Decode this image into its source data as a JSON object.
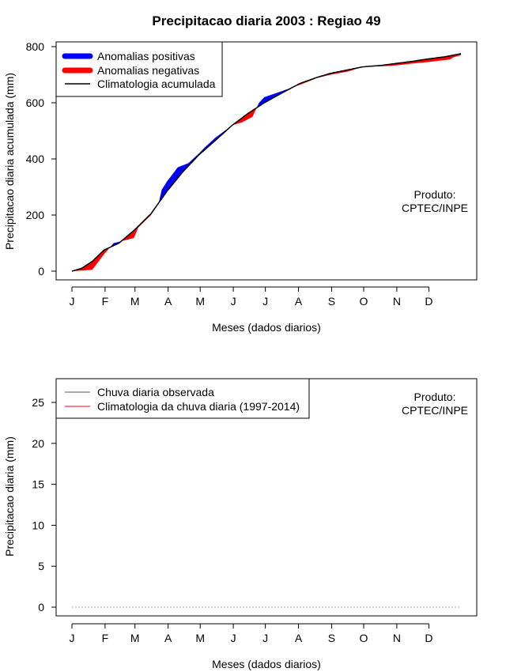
{
  "title": "Precipitacao diaria 2003 : Regiao 49",
  "colors": {
    "positive": "#0000ff",
    "negative": "#ff0000",
    "climatology": "#000000",
    "observed_bars": "#555555",
    "clim_daily_line": "#ff0000"
  },
  "chart_data": [
    {
      "id": "top",
      "type": "area",
      "title": "Precipitacao diaria 2003 : Regiao 49",
      "xlabel": "Meses (dados diarios)",
      "ylabel": "Precipitacao diaria acumulada (mm)",
      "xlim": [
        1,
        365
      ],
      "ylim": [
        0,
        800
      ],
      "yticks": [
        0,
        200,
        400,
        600,
        800
      ],
      "month_ticks": [
        "J",
        "F",
        "M",
        "A",
        "M",
        "J",
        "J",
        "A",
        "S",
        "O",
        "N",
        "D"
      ],
      "legend": {
        "position": "top-left",
        "items": [
          {
            "label": "Anomalias positivas",
            "color": "#0000ff",
            "kind": "thick"
          },
          {
            "label": "Anomalias negativas",
            "color": "#ff0000",
            "kind": "thick"
          },
          {
            "label": "Climatologia acumulada",
            "color": "#000000",
            "kind": "line"
          }
        ]
      },
      "annotation": [
        "Produto:",
        "CPTEC/INPE"
      ],
      "series": [
        {
          "name": "Climatologia acumulada",
          "points": [
            [
              1,
              0
            ],
            [
              10,
              10
            ],
            [
              20,
              35
            ],
            [
              31,
              75
            ],
            [
              45,
              100
            ],
            [
              59,
              145
            ],
            [
              75,
              205
            ],
            [
              90,
              285
            ],
            [
              105,
              355
            ],
            [
              120,
              415
            ],
            [
              135,
              465
            ],
            [
              151,
              520
            ],
            [
              165,
              560
            ],
            [
              181,
              600
            ],
            [
              200,
              640
            ],
            [
              215,
              670
            ],
            [
              230,
              690
            ],
            [
              243,
              705
            ],
            [
              260,
              718
            ],
            [
              273,
              728
            ],
            [
              290,
              733
            ],
            [
              304,
              740
            ],
            [
              320,
              748
            ],
            [
              334,
              756
            ],
            [
              350,
              764
            ],
            [
              365,
              775
            ]
          ]
        },
        {
          "name": "Precipitacao acumulada observada",
          "points": [
            [
              1,
              0
            ],
            [
              10,
              2
            ],
            [
              20,
              5
            ],
            [
              31,
              60
            ],
            [
              40,
              100
            ],
            [
              59,
              118
            ],
            [
              63,
              155
            ],
            [
              75,
              200
            ],
            [
              82,
              240
            ],
            [
              85,
              290
            ],
            [
              90,
              320
            ],
            [
              100,
              370
            ],
            [
              110,
              385
            ],
            [
              120,
              420
            ],
            [
              125,
              440
            ],
            [
              135,
              475
            ],
            [
              151,
              520
            ],
            [
              160,
              530
            ],
            [
              170,
              550
            ],
            [
              176,
              600
            ],
            [
              181,
              620
            ],
            [
              200,
              645
            ],
            [
              215,
              665
            ],
            [
              225,
              680
            ],
            [
              230,
              688
            ],
            [
              243,
              700
            ],
            [
              260,
              712
            ],
            [
              273,
              728
            ],
            [
              290,
              730
            ],
            [
              304,
              733
            ],
            [
              320,
              740
            ],
            [
              334,
              745
            ],
            [
              345,
              750
            ],
            [
              350,
              752
            ],
            [
              355,
              755
            ],
            [
              358,
              762
            ],
            [
              365,
              770
            ]
          ]
        }
      ]
    },
    {
      "id": "bottom",
      "type": "bar",
      "xlabel": "Meses (dados diarios)",
      "ylabel": "Precipitacao diaria (mm)",
      "xlim": [
        1,
        365
      ],
      "ylim": [
        0,
        25
      ],
      "yticks": [
        0,
        5,
        10,
        15,
        20,
        25
      ],
      "month_ticks": [
        "J",
        "F",
        "M",
        "A",
        "M",
        "J",
        "J",
        "A",
        "S",
        "O",
        "N",
        "D"
      ],
      "legend": {
        "position": "top-left",
        "items": [
          {
            "label": "Chuva diaria observada",
            "color": "#555555",
            "kind": "line"
          },
          {
            "label": "Climatologia da chuva diaria (1997-2014)",
            "color": "#ff0000",
            "kind": "line"
          }
        ]
      },
      "annotation": [
        "Produto:",
        "CPTEC/INPE"
      ],
      "series": [
        {
          "name": "Chuva diaria observada",
          "values": [
            0,
            0,
            0,
            0,
            0,
            0,
            0,
            0,
            0,
            0,
            0,
            0,
            0,
            0,
            0,
            0,
            0,
            0,
            0,
            0,
            0,
            0,
            0,
            0,
            0,
            0,
            0,
            0,
            0,
            0,
            0,
            0,
            0,
            0,
            0,
            0,
            0,
            0,
            0,
            0,
            0,
            0,
            0,
            0,
            0,
            0,
            0,
            0,
            0,
            0,
            0,
            0,
            0,
            0,
            0,
            0,
            0,
            0,
            0,
            0,
            0,
            0,
            0,
            0,
            0,
            0,
            0,
            0,
            0,
            0,
            0,
            0,
            0,
            0,
            0,
            0,
            0,
            0,
            0,
            0,
            0,
            0,
            0,
            0,
            0,
            0,
            0,
            0,
            0,
            0,
            0,
            0,
            0,
            0,
            0,
            0,
            0,
            0,
            0,
            0,
            0,
            0,
            0,
            0,
            0,
            0,
            0,
            0,
            0,
            0,
            0,
            0,
            0,
            0,
            0,
            0,
            0,
            0,
            0,
            0,
            0,
            0,
            0,
            0,
            0,
            0,
            0,
            0,
            0,
            0,
            0,
            0,
            0,
            0,
            0,
            0,
            0,
            0,
            0,
            0,
            0,
            0,
            0,
            0,
            0,
            0,
            0,
            0,
            0,
            0,
            0,
            0,
            0,
            0,
            0,
            0,
            0,
            0,
            0,
            0,
            0,
            0,
            0,
            0,
            0,
            0,
            0,
            0,
            0,
            0,
            0,
            0,
            0,
            0,
            0,
            0,
            0,
            0,
            0,
            0,
            0,
            0,
            0,
            0,
            0,
            0,
            0,
            0,
            0,
            0,
            0,
            0,
            0,
            0,
            0,
            0,
            0,
            0,
            0,
            0,
            0,
            0,
            0,
            0,
            0,
            0,
            0,
            0,
            0,
            0,
            0,
            0,
            0,
            0,
            0,
            0,
            0,
            0,
            0,
            0,
            0,
            0,
            0,
            0,
            0,
            0,
            0,
            0,
            0,
            0,
            0,
            0,
            0,
            0,
            0,
            0,
            0,
            0,
            0,
            0,
            0,
            0,
            0,
            0,
            0,
            0,
            0,
            0,
            0,
            0,
            0,
            0,
            0,
            0,
            0,
            0,
            0,
            0,
            0,
            0,
            0,
            0,
            0,
            0,
            0,
            0,
            0,
            0,
            0,
            0,
            0,
            0,
            0,
            0,
            0,
            0,
            0,
            0,
            0,
            0,
            0,
            0,
            0,
            0,
            0,
            0,
            0,
            0,
            0,
            0,
            0,
            0,
            0,
            0,
            0,
            0,
            0,
            0,
            0,
            0,
            0,
            0,
            0,
            0,
            0,
            0,
            0,
            0,
            0,
            0,
            0,
            0,
            0,
            0,
            0,
            0,
            0,
            0,
            0,
            0,
            0,
            0,
            0,
            0,
            0,
            0,
            0,
            0,
            0,
            0,
            0,
            0,
            0,
            0,
            0,
            0,
            0,
            0,
            0,
            0,
            0,
            0,
            0,
            0,
            0,
            0,
            0,
            0,
            0,
            0,
            0,
            0,
            0,
            0,
            0,
            0,
            0,
            0,
            0,
            0,
            0,
            0,
            0,
            0,
            0,
            0,
            0,
            0,
            0,
            0,
            0
          ]
        },
        {
          "name": "Climatologia da chuva diaria (1997-2014)",
          "values": []
        }
      ]
    }
  ]
}
